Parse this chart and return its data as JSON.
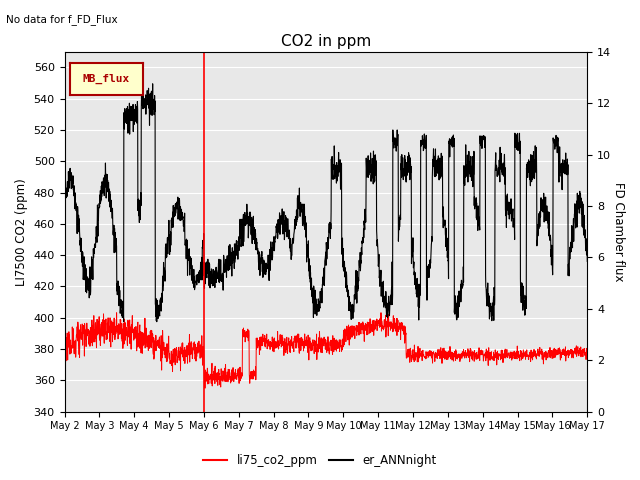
{
  "title": "CO2 in ppm",
  "top_left_text": "No data for f_FD_Flux",
  "ylabel_left": "LI7500 CO2 (ppm)",
  "ylabel_right": "FD Chamber flux",
  "ylim_left": [
    340,
    570
  ],
  "ylim_right": [
    0,
    14
  ],
  "yticks_left": [
    340,
    360,
    380,
    400,
    420,
    440,
    460,
    480,
    500,
    520,
    540,
    560
  ],
  "yticks_right": [
    0,
    2,
    4,
    6,
    8,
    10,
    12,
    14
  ],
  "xtick_labels": [
    "May 2",
    "May 3",
    "May 4",
    "May 5",
    "May 6",
    "May 7",
    "May 8",
    "May 9",
    "May 10",
    "May 11",
    "May 12",
    "May 13",
    "May 14",
    "May 15",
    "May 16",
    "May 17"
  ],
  "vline_day": 4,
  "legend_labels": [
    "li75_co2_ppm",
    "er_ANNnight"
  ],
  "legend_colors": [
    "red",
    "black"
  ],
  "bg_color": "#e8e8e8",
  "mb_flux_box_color": "#ffffcc",
  "mb_flux_border_color": "#aa0000",
  "mb_flux_text_color": "#aa0000"
}
